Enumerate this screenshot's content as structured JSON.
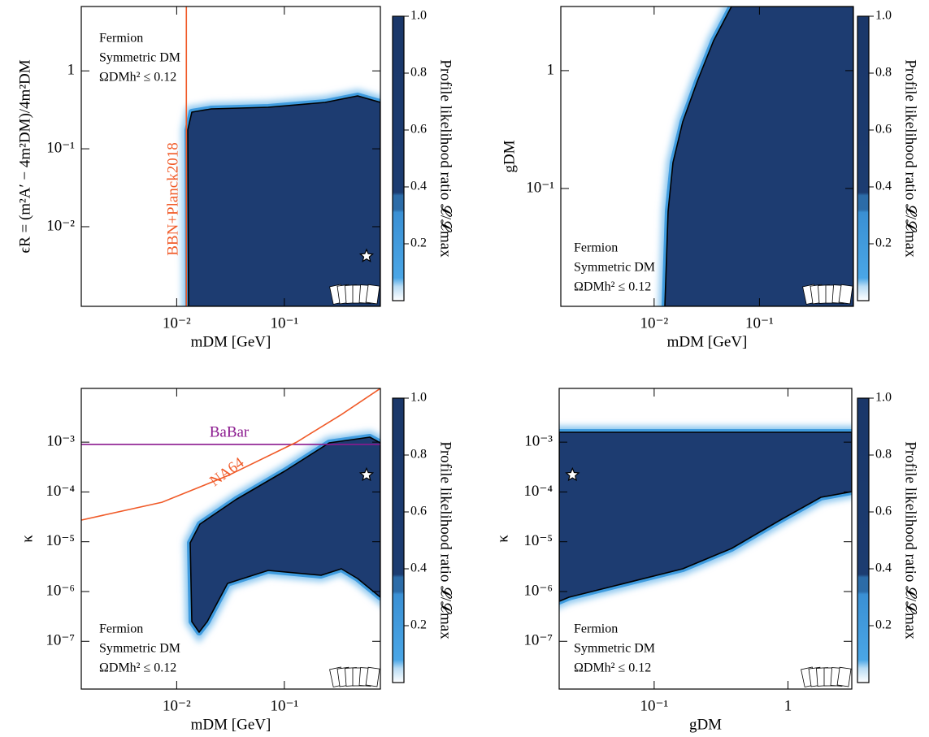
{
  "chart_data": [
    {
      "type": "heatmap",
      "xlabel": "mDM [GeV]",
      "ylabel": "ϵR = (m²A′ − 4m²DM)/4m²DM",
      "xscale": "log",
      "yscale": "log",
      "xlim": [
        0.0013,
        0.78
      ],
      "ylim": [
        0.00095,
        6.7
      ],
      "xticks": [
        {
          "value": 0.01,
          "label": "10⁻²"
        },
        {
          "value": 0.1,
          "label": "10⁻¹"
        }
      ],
      "yticks": [
        {
          "value": 0.01,
          "label": "10⁻²"
        },
        {
          "value": 0.1,
          "label": "10⁻¹"
        },
        1
      ],
      "annotations": [
        "Fermion",
        "Symmetric DM",
        "ΩDMh² ≤ 0.12"
      ],
      "colorbar": {
        "label": "Profile likelihood ratio 𝓛/𝓛max",
        "lim": [
          0,
          1
        ],
        "ticks": [
          0.2,
          0.4,
          0.6,
          0.8,
          {
            "value": 1,
            "label": "1.0"
          }
        ]
      },
      "best_fit": {
        "x": 0.58,
        "y": 0.0042
      },
      "limits": [
        {
          "name": "BBN+Planck2018",
          "color": "#f05a28",
          "x": [
            0.0123,
            0.0123
          ],
          "y": [
            0.00095,
            6.7
          ]
        }
      ]
    },
    {
      "type": "heatmap",
      "xlabel": "mDM [GeV]",
      "ylabel": "gDM",
      "xscale": "log",
      "yscale": "log",
      "xlim": [
        0.0013,
        0.78
      ],
      "ylim": [
        0.01,
        3.5
      ],
      "xticks": [
        {
          "value": 0.01,
          "label": "10⁻²"
        },
        {
          "value": 0.1,
          "label": "10⁻¹"
        }
      ],
      "yticks": [
        {
          "value": 0.1,
          "label": "10⁻¹"
        },
        1
      ],
      "annotations": [
        "Fermion",
        "Symmetric DM",
        "ΩDMh² ≤ 0.12"
      ],
      "colorbar": {
        "label": "Profile likelihood ratio 𝓛/𝓛max",
        "lim": [
          0,
          1
        ],
        "ticks": [
          0.2,
          0.4,
          0.6,
          0.8,
          {
            "value": 1,
            "label": "1.0"
          }
        ]
      }
    },
    {
      "type": "heatmap",
      "xlabel": "mDM [GeV]",
      "ylabel": "κ",
      "xscale": "log",
      "yscale": "log",
      "xlim": [
        0.0013,
        0.78
      ],
      "ylim": [
        1.1e-08,
        0.012
      ],
      "xticks": [
        {
          "value": 0.01,
          "label": "10⁻²"
        },
        {
          "value": 0.1,
          "label": "10⁻¹"
        }
      ],
      "yticks": [
        {
          "value": 1e-07,
          "label": "10⁻⁷"
        },
        {
          "value": 1e-06,
          "label": "10⁻⁶"
        },
        {
          "value": 1e-05,
          "label": "10⁻⁵"
        },
        {
          "value": 0.0001,
          "label": "10⁻⁴"
        },
        {
          "value": 0.001,
          "label": "10⁻³"
        }
      ],
      "annotations": [
        "Fermion",
        "Symmetric DM",
        "ΩDMh² ≤ 0.12"
      ],
      "colorbar": {
        "label": "Profile likelihood ratio 𝓛/𝓛max",
        "lim": [
          0,
          1
        ],
        "ticks": [
          0.2,
          0.4,
          0.6,
          0.8,
          {
            "value": 1,
            "label": "1.0"
          }
        ]
      },
      "best_fit": {
        "x": 0.58,
        "y": 0.00022
      },
      "limits": [
        {
          "name": "BaBar",
          "color": "#8b1a8f",
          "x": [
            0.0013,
            0.78
          ],
          "y": [
            0.0009,
            0.0009
          ]
        },
        {
          "name": "NA64",
          "color": "#f05a28",
          "x": [
            0.00128,
            0.0073,
            0.0295,
            0.13,
            0.34,
            0.78
          ],
          "y": [
            2.7e-05,
            6.2e-05,
            0.00021,
            0.001,
            0.0036,
            0.012
          ]
        }
      ]
    },
    {
      "type": "heatmap",
      "xlabel": "gDM",
      "ylabel": "κ",
      "xscale": "log",
      "yscale": "log",
      "xlim": [
        0.0195,
        3
      ],
      "ylim": [
        1.1e-08,
        0.012
      ],
      "xticks": [
        {
          "value": 0.1,
          "label": "10⁻¹"
        },
        1
      ],
      "yticks": [
        {
          "value": 1e-07,
          "label": "10⁻⁷"
        },
        {
          "value": 1e-06,
          "label": "10⁻⁶"
        },
        {
          "value": 1e-05,
          "label": "10⁻⁵"
        },
        {
          "value": 0.0001,
          "label": "10⁻⁴"
        },
        {
          "value": 0.001,
          "label": "10⁻³"
        }
      ],
      "annotations": [
        "Fermion",
        "Symmetric DM",
        "ΩDMh² ≤ 0.12"
      ],
      "colorbar": {
        "label": "Profile likelihood ratio 𝓛/𝓛max",
        "lim": [
          0,
          1
        ],
        "ticks": [
          0.2,
          0.4,
          0.6,
          0.8,
          {
            "value": 1,
            "label": "1.0"
          }
        ]
      },
      "best_fit": {
        "x": 0.0245,
        "y": 0.00022
      }
    }
  ]
}
